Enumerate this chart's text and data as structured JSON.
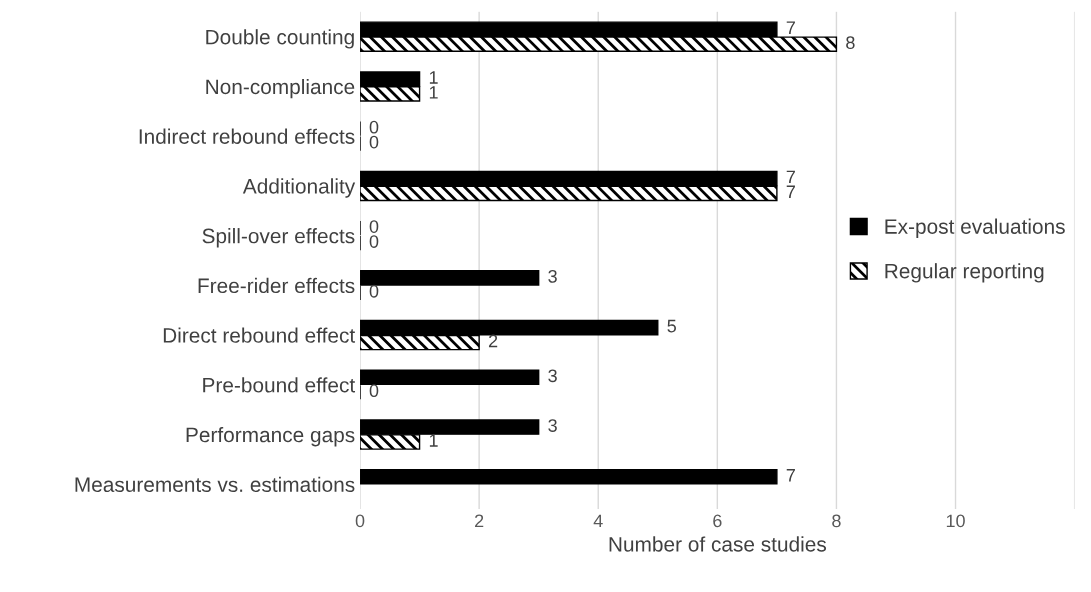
{
  "chart_data": {
    "type": "bar",
    "orientation": "horizontal",
    "xlabel": "Number of case studies",
    "categories": [
      "Double counting",
      "Non-compliance",
      "Indirect rebound effects",
      "Additionality",
      "Spill-over effects",
      "Free-rider effects",
      "Direct rebound effect",
      "Pre-bound effect",
      "Performance gaps",
      "Measurements vs. estimations"
    ],
    "series": [
      {
        "name": "Ex-post evaluations",
        "color": "#000000",
        "values": [
          7,
          1,
          0,
          7,
          0,
          3,
          5,
          3,
          3,
          7
        ]
      },
      {
        "name": "Regular reporting",
        "color": "#000000",
        "values": [
          8,
          1,
          0,
          7,
          0,
          0,
          2,
          0,
          1,
          null
        ]
      }
    ],
    "xlim": [
      0,
      12
    ],
    "xticks": [
      0,
      2,
      4,
      6,
      8,
      10,
      {
        "value": 12,
        "label": null
      }
    ],
    "grid": "x",
    "legend": "right",
    "data_labels": true
  }
}
